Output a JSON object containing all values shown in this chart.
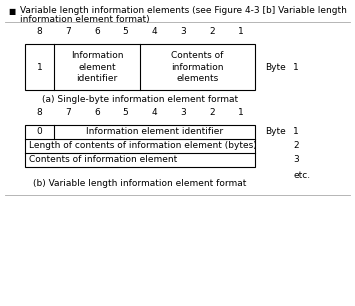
{
  "bg_color": "#ffffff",
  "text_color": "#000000",
  "header_line1": "Variable length information elements (see Figure 4-3 [b] Variable length",
  "header_line2": "information element format)",
  "bit_labels": [
    "8",
    "7",
    "6",
    "5",
    "4",
    "3",
    "2",
    "1"
  ],
  "section_a_label": "(a) Single-byte information element format",
  "section_b_label": "(b) Variable length information element format",
  "table_a": {
    "col1_val": "1",
    "col2_text": "Information\nelement\nidentifier",
    "col3_text": "Contents of\ninformation\nelements",
    "byte_label": "Byte",
    "byte_num": "1"
  },
  "table_b": {
    "row1_col1": "0",
    "row1_col2": "Information element identifier",
    "row2": "Length of contents of information element (bytes)",
    "row3": "Contents of information element",
    "byte_label": "Byte",
    "byte_nums": [
      "1",
      "2",
      "3"
    ],
    "etc": "etc."
  },
  "fs": 6.5,
  "sep_color": "#aaaaaa",
  "line_color": "#000000"
}
